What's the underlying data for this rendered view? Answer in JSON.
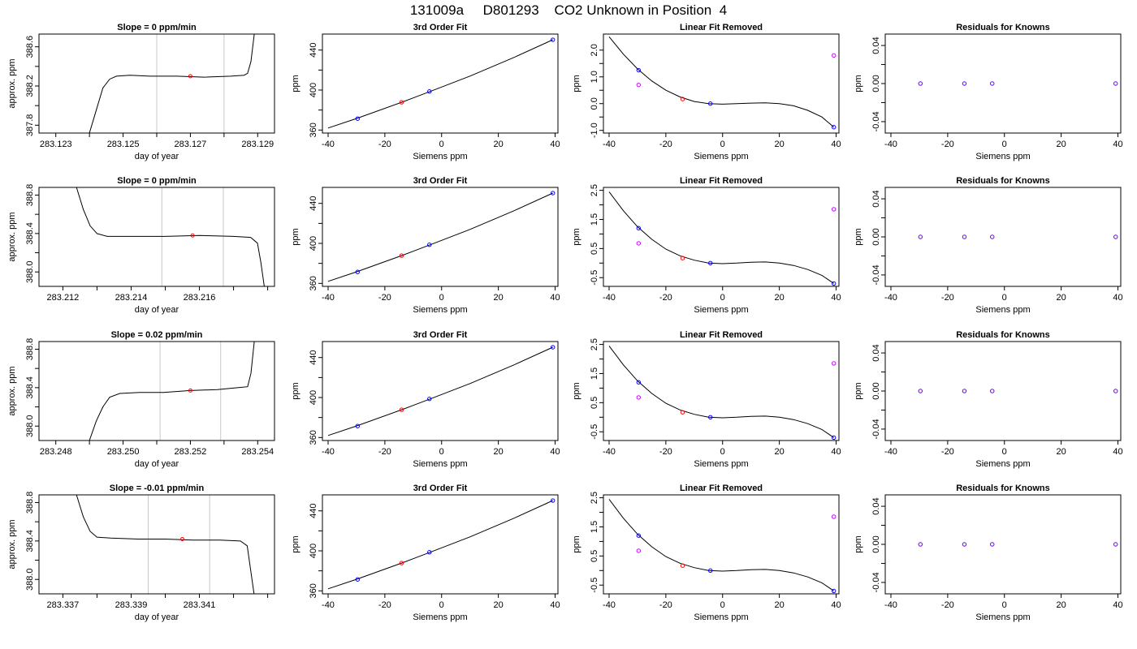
{
  "page_title": "131009a     D801293    CO2 Unknown in Position  4",
  "colors": {
    "axis": "#000000",
    "trace": "#000000",
    "window_lines": "#c8c8c8",
    "midpoint_marker": "#ff0000",
    "known_points": "#0000ff",
    "target_point": "#ff0000",
    "measured_points": "#cc00ff"
  },
  "chart_data": [
    {
      "type": "line",
      "row": 1,
      "title": "Slope =  0  ppm/min",
      "xlabel": "day of year",
      "ylabel": "approx. ppm",
      "xlim": [
        283.1225,
        283.1295
      ],
      "ylim": [
        387.72,
        388.73
      ],
      "x_ticks": [
        "283.123",
        "283.125",
        "283.127",
        "283.129"
      ],
      "y_ticks": [
        "387.8",
        "388.2",
        "388.6"
      ],
      "window_lines": [
        283.126,
        283.128
      ],
      "midpoint": [
        283.127,
        388.3
      ],
      "trace": [
        [
          283.124,
          387.72
        ],
        [
          283.1242,
          387.95
        ],
        [
          283.1244,
          388.18
        ],
        [
          283.1246,
          388.27
        ],
        [
          283.1248,
          388.3
        ],
        [
          283.1252,
          388.31
        ],
        [
          283.1258,
          388.3
        ],
        [
          283.1266,
          388.3
        ],
        [
          283.1274,
          388.29
        ],
        [
          283.1282,
          388.3
        ],
        [
          283.1286,
          388.31
        ],
        [
          283.1287,
          388.33
        ],
        [
          283.1288,
          388.45
        ],
        [
          283.1289,
          388.73
        ]
      ]
    },
    {
      "type": "scatter",
      "row": 1,
      "title": "3rd Order Fit",
      "xlabel": "Siemens ppm",
      "ylabel": "ppm",
      "xlim": [
        -42,
        41
      ],
      "ylim": [
        357,
        456
      ],
      "x_ticks": [
        "-40",
        "-20",
        "0",
        "20",
        "40"
      ],
      "y_ticks": [
        "360",
        "400",
        "440"
      ],
      "curve": [
        [
          -40,
          362
        ],
        [
          -30,
          371.5
        ],
        [
          -14,
          387.8
        ],
        [
          -4,
          398.6
        ],
        [
          10,
          414
        ],
        [
          25,
          432
        ],
        [
          39.2,
          450.3
        ]
      ],
      "known": [
        [
          -29.6,
          371.4
        ],
        [
          -4.3,
          398.6
        ],
        [
          39.2,
          450.3
        ]
      ],
      "target": [
        [
          -14.1,
          387.8
        ]
      ]
    },
    {
      "type": "scatter",
      "row": 1,
      "title": "Linear Fit Removed",
      "xlabel": "Siemens ppm",
      "ylabel": "ppm",
      "xlim": [
        -42,
        41
      ],
      "ylim": [
        -1.1,
        2.6
      ],
      "x_ticks": [
        "-40",
        "-20",
        "0",
        "20",
        "40"
      ],
      "y_ticks": [
        "-1.0",
        "0.0",
        "1.0",
        "2.0"
      ],
      "curve": [
        [
          -40,
          2.5
        ],
        [
          -35,
          1.85
        ],
        [
          -30,
          1.3
        ],
        [
          -25,
          0.85
        ],
        [
          -20,
          0.5
        ],
        [
          -15,
          0.25
        ],
        [
          -10,
          0.08
        ],
        [
          -5,
          0.0
        ],
        [
          0,
          -0.02
        ],
        [
          5,
          0.0
        ],
        [
          10,
          0.02
        ],
        [
          15,
          0.03
        ],
        [
          20,
          0.0
        ],
        [
          25,
          -0.08
        ],
        [
          30,
          -0.25
        ],
        [
          35,
          -0.5
        ],
        [
          39.2,
          -0.88
        ]
      ],
      "known": [
        [
          -29.6,
          1.25
        ],
        [
          -4.3,
          0.0
        ],
        [
          39.2,
          -0.88
        ]
      ],
      "target": [
        [
          -14.1,
          0.17
        ]
      ],
      "measured": [
        [
          -29.6,
          0.7
        ],
        [
          39.2,
          1.8
        ]
      ]
    },
    {
      "type": "scatter",
      "row": 1,
      "title": "Residuals for Knowns",
      "xlabel": "Siemens ppm",
      "ylabel": "ppm",
      "xlim": [
        -42,
        41
      ],
      "ylim": [
        -0.052,
        0.052
      ],
      "x_ticks": [
        "-40",
        "-20",
        "0",
        "20",
        "40"
      ],
      "y_ticks": [
        "-0.04",
        "0.00",
        "0.04"
      ],
      "known": [
        [
          -29.6,
          0
        ],
        [
          -14.1,
          0
        ],
        [
          -4.3,
          0
        ],
        [
          39.2,
          0
        ]
      ]
    },
    {
      "type": "line",
      "row": 2,
      "title": "Slope =  0  ppm/min",
      "xlabel": "day of year",
      "ylabel": "approx. ppm",
      "xlim": [
        283.2113,
        283.2182
      ],
      "ylim": [
        387.85,
        388.88
      ],
      "x_ticks": [
        "283.212",
        "283.214",
        "283.216"
      ],
      "y_ticks": [
        "388.0",
        "388.4",
        "388.8"
      ],
      "window_lines": [
        283.2149,
        283.2167
      ],
      "midpoint": [
        283.2158,
        388.38
      ],
      "trace": [
        [
          283.2124,
          388.88
        ],
        [
          283.2126,
          388.65
        ],
        [
          283.2128,
          388.48
        ],
        [
          283.213,
          388.4
        ],
        [
          283.2133,
          388.37
        ],
        [
          283.214,
          388.37
        ],
        [
          283.215,
          388.37
        ],
        [
          283.216,
          388.38
        ],
        [
          283.217,
          388.37
        ],
        [
          283.2175,
          388.36
        ],
        [
          283.2177,
          388.3
        ],
        [
          283.2178,
          388.1
        ],
        [
          283.2179,
          387.85
        ]
      ]
    },
    {
      "type": "scatter",
      "row": 2,
      "title": "3rd Order Fit",
      "xlabel": "Siemens ppm",
      "ylabel": "ppm",
      "xlim": [
        -42,
        41
      ],
      "ylim": [
        357,
        456
      ],
      "x_ticks": [
        "-40",
        "-20",
        "0",
        "20",
        "40"
      ],
      "y_ticks": [
        "360",
        "400",
        "440"
      ],
      "curve": [
        [
          -40,
          362
        ],
        [
          -30,
          371.5
        ],
        [
          -14,
          387.8
        ],
        [
          -4,
          398.6
        ],
        [
          10,
          414
        ],
        [
          25,
          432
        ],
        [
          39.2,
          450.3
        ]
      ],
      "known": [
        [
          -29.6,
          371.4
        ],
        [
          -4.3,
          398.6
        ],
        [
          39.2,
          450.3
        ]
      ],
      "target": [
        [
          -14.1,
          387.8
        ]
      ]
    },
    {
      "type": "scatter",
      "row": 2,
      "title": "Linear Fit Removed",
      "xlabel": "Siemens ppm",
      "ylabel": "ppm",
      "xlim": [
        -42,
        41
      ],
      "ylim": [
        -0.8,
        2.6
      ],
      "x_ticks": [
        "-40",
        "-20",
        "0",
        "20",
        "40"
      ],
      "y_ticks": [
        "-0.5",
        "0.5",
        "1.5",
        "2.5"
      ],
      "curve": [
        [
          -40,
          2.45
        ],
        [
          -35,
          1.8
        ],
        [
          -30,
          1.25
        ],
        [
          -25,
          0.82
        ],
        [
          -20,
          0.48
        ],
        [
          -15,
          0.25
        ],
        [
          -10,
          0.1
        ],
        [
          -5,
          0.0
        ],
        [
          0,
          -0.02
        ],
        [
          5,
          0.0
        ],
        [
          10,
          0.03
        ],
        [
          15,
          0.04
        ],
        [
          20,
          0.0
        ],
        [
          25,
          -0.08
        ],
        [
          30,
          -0.22
        ],
        [
          35,
          -0.42
        ],
        [
          39.2,
          -0.7
        ]
      ],
      "known": [
        [
          -29.6,
          1.2
        ],
        [
          -4.3,
          0.0
        ],
        [
          39.2,
          -0.7
        ]
      ],
      "target": [
        [
          -14.1,
          0.17
        ]
      ],
      "measured": [
        [
          -29.6,
          0.68
        ],
        [
          39.2,
          1.85
        ]
      ]
    },
    {
      "type": "scatter",
      "row": 2,
      "title": "Residuals for Knowns",
      "xlabel": "Siemens ppm",
      "ylabel": "ppm",
      "xlim": [
        -42,
        41
      ],
      "ylim": [
        -0.052,
        0.052
      ],
      "x_ticks": [
        "-40",
        "-20",
        "0",
        "20",
        "40"
      ],
      "y_ticks": [
        "-0.04",
        "0.00",
        "0.04"
      ],
      "known": [
        [
          -29.6,
          0
        ],
        [
          -14.1,
          0
        ],
        [
          -4.3,
          0
        ],
        [
          39.2,
          0
        ]
      ]
    },
    {
      "type": "line",
      "row": 3,
      "title": "Slope =  0.02  ppm/min",
      "xlabel": "day of year",
      "ylabel": "approx. ppm",
      "xlim": [
        283.2475,
        283.2545
      ],
      "ylim": [
        387.85,
        388.88
      ],
      "x_ticks": [
        "283.248",
        "283.250",
        "283.252",
        "283.254"
      ],
      "y_ticks": [
        "388.0",
        "388.4",
        "388.8"
      ],
      "window_lines": [
        283.2511,
        283.2529
      ],
      "midpoint": [
        283.252,
        388.37
      ],
      "trace": [
        [
          283.249,
          387.85
        ],
        [
          283.2492,
          388.05
        ],
        [
          283.2494,
          388.2
        ],
        [
          283.2496,
          388.3
        ],
        [
          283.2499,
          388.34
        ],
        [
          283.2505,
          388.35
        ],
        [
          283.2512,
          388.35
        ],
        [
          283.252,
          388.37
        ],
        [
          283.2528,
          388.38
        ],
        [
          283.2534,
          388.4
        ],
        [
          283.2537,
          388.41
        ],
        [
          283.2538,
          388.55
        ],
        [
          283.2539,
          388.88
        ]
      ]
    },
    {
      "type": "scatter",
      "row": 3,
      "title": "3rd Order Fit",
      "xlabel": "Siemens ppm",
      "ylabel": "ppm",
      "xlim": [
        -42,
        41
      ],
      "ylim": [
        357,
        456
      ],
      "x_ticks": [
        "-40",
        "-20",
        "0",
        "20",
        "40"
      ],
      "y_ticks": [
        "360",
        "400",
        "440"
      ],
      "curve": [
        [
          -40,
          362
        ],
        [
          -30,
          371.5
        ],
        [
          -14,
          387.8
        ],
        [
          -4,
          398.6
        ],
        [
          10,
          414
        ],
        [
          25,
          432
        ],
        [
          39.2,
          450.3
        ]
      ],
      "known": [
        [
          -29.6,
          371.4
        ],
        [
          -4.3,
          398.6
        ],
        [
          39.2,
          450.3
        ]
      ],
      "target": [
        [
          -14.1,
          387.8
        ]
      ]
    },
    {
      "type": "scatter",
      "row": 3,
      "title": "Linear Fit Removed",
      "xlabel": "Siemens ppm",
      "ylabel": "ppm",
      "xlim": [
        -42,
        41
      ],
      "ylim": [
        -0.8,
        2.6
      ],
      "x_ticks": [
        "-40",
        "-20",
        "0",
        "20",
        "40"
      ],
      "y_ticks": [
        "-0.5",
        "0.5",
        "1.5",
        "2.5"
      ],
      "curve": [
        [
          -40,
          2.45
        ],
        [
          -35,
          1.8
        ],
        [
          -30,
          1.25
        ],
        [
          -25,
          0.82
        ],
        [
          -20,
          0.48
        ],
        [
          -15,
          0.25
        ],
        [
          -10,
          0.1
        ],
        [
          -5,
          0.0
        ],
        [
          0,
          -0.02
        ],
        [
          5,
          0.0
        ],
        [
          10,
          0.03
        ],
        [
          15,
          0.04
        ],
        [
          20,
          0.0
        ],
        [
          25,
          -0.08
        ],
        [
          30,
          -0.22
        ],
        [
          35,
          -0.42
        ],
        [
          39.2,
          -0.7
        ]
      ],
      "known": [
        [
          -29.6,
          1.2
        ],
        [
          -4.3,
          0.0
        ],
        [
          39.2,
          -0.7
        ]
      ],
      "target": [
        [
          -14.1,
          0.17
        ]
      ],
      "measured": [
        [
          -29.6,
          0.68
        ],
        [
          39.2,
          1.85
        ]
      ]
    },
    {
      "type": "scatter",
      "row": 3,
      "title": "Residuals for Knowns",
      "xlabel": "Siemens ppm",
      "ylabel": "ppm",
      "xlim": [
        -42,
        41
      ],
      "ylim": [
        -0.052,
        0.052
      ],
      "x_ticks": [
        "-40",
        "-20",
        "0",
        "20",
        "40"
      ],
      "y_ticks": [
        "-0.04",
        "0.00",
        "0.04"
      ],
      "known": [
        [
          -29.6,
          0
        ],
        [
          -14.1,
          0
        ],
        [
          -4.3,
          0
        ],
        [
          39.2,
          0
        ]
      ]
    },
    {
      "type": "line",
      "row": 4,
      "title": "Slope =  -0.01  ppm/min",
      "xlabel": "day of year",
      "ylabel": "approx. ppm",
      "xlim": [
        283.3363,
        283.3432
      ],
      "ylim": [
        387.85,
        388.88
      ],
      "x_ticks": [
        "283.337",
        "283.339",
        "283.341"
      ],
      "y_ticks": [
        "388.0",
        "388.4",
        "388.8"
      ],
      "window_lines": [
        283.3395,
        283.3413
      ],
      "midpoint": [
        283.3405,
        388.42
      ],
      "trace": [
        [
          283.3374,
          388.88
        ],
        [
          283.3376,
          388.65
        ],
        [
          283.3378,
          388.5
        ],
        [
          283.338,
          388.44
        ],
        [
          283.3384,
          388.43
        ],
        [
          283.3392,
          388.42
        ],
        [
          283.34,
          388.42
        ],
        [
          283.3408,
          388.41
        ],
        [
          283.3416,
          388.41
        ],
        [
          283.3422,
          388.4
        ],
        [
          283.3424,
          388.35
        ],
        [
          283.3425,
          388.1
        ],
        [
          283.3426,
          387.85
        ]
      ]
    },
    {
      "type": "scatter",
      "row": 4,
      "title": "3rd Order Fit",
      "xlabel": "Siemens ppm",
      "ylabel": "ppm",
      "xlim": [
        -42,
        41
      ],
      "ylim": [
        357,
        456
      ],
      "x_ticks": [
        "-40",
        "-20",
        "0",
        "20",
        "40"
      ],
      "y_ticks": [
        "360",
        "400",
        "440"
      ],
      "curve": [
        [
          -40,
          362
        ],
        [
          -30,
          371.5
        ],
        [
          -14,
          387.8
        ],
        [
          -4,
          398.6
        ],
        [
          10,
          414
        ],
        [
          25,
          432
        ],
        [
          39.2,
          450.3
        ]
      ],
      "known": [
        [
          -29.6,
          371.4
        ],
        [
          -4.3,
          398.6
        ],
        [
          39.2,
          450.3
        ]
      ],
      "target": [
        [
          -14.1,
          387.8
        ]
      ]
    },
    {
      "type": "scatter",
      "row": 4,
      "title": "Linear Fit Removed",
      "xlabel": "Siemens ppm",
      "ylabel": "ppm",
      "xlim": [
        -42,
        41
      ],
      "ylim": [
        -0.8,
        2.6
      ],
      "x_ticks": [
        "-40",
        "-20",
        "0",
        "20",
        "40"
      ],
      "y_ticks": [
        "-0.5",
        "0.5",
        "1.5",
        "2.5"
      ],
      "curve": [
        [
          -40,
          2.45
        ],
        [
          -35,
          1.8
        ],
        [
          -30,
          1.25
        ],
        [
          -25,
          0.82
        ],
        [
          -20,
          0.48
        ],
        [
          -15,
          0.25
        ],
        [
          -10,
          0.1
        ],
        [
          -5,
          0.0
        ],
        [
          0,
          -0.02
        ],
        [
          5,
          0.0
        ],
        [
          10,
          0.03
        ],
        [
          15,
          0.04
        ],
        [
          20,
          0.0
        ],
        [
          25,
          -0.08
        ],
        [
          30,
          -0.22
        ],
        [
          35,
          -0.42
        ],
        [
          39.2,
          -0.7
        ]
      ],
      "known": [
        [
          -29.6,
          1.2
        ],
        [
          -4.3,
          0.0
        ],
        [
          39.2,
          -0.7
        ]
      ],
      "target": [
        [
          -14.1,
          0.17
        ]
      ],
      "measured": [
        [
          -29.6,
          0.68
        ],
        [
          39.2,
          1.85
        ]
      ]
    },
    {
      "type": "scatter",
      "row": 4,
      "title": "Residuals for Knowns",
      "xlabel": "Siemens ppm",
      "ylabel": "ppm",
      "xlim": [
        -42,
        41
      ],
      "ylim": [
        -0.052,
        0.052
      ],
      "x_ticks": [
        "-40",
        "-20",
        "0",
        "20",
        "40"
      ],
      "y_ticks": [
        "-0.04",
        "0.00",
        "0.04"
      ],
      "known": [
        [
          -29.6,
          0
        ],
        [
          -14.1,
          0
        ],
        [
          -4.3,
          0
        ],
        [
          39.2,
          0
        ]
      ]
    }
  ]
}
